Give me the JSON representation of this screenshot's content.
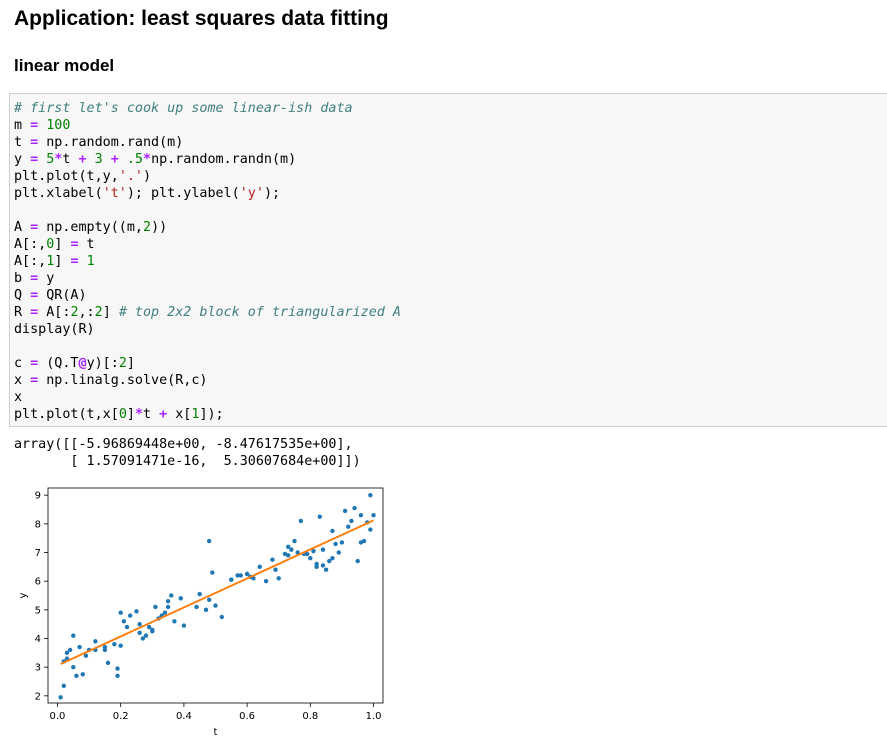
{
  "page": {
    "heading": "Application: least squares data fitting",
    "subheading": "linear model"
  },
  "code_cell": {
    "lines": [
      [
        {
          "t": "# first let's cook up some linear-ish data",
          "k": "comment"
        }
      ],
      [
        {
          "t": "m "
        },
        {
          "t": "=",
          "k": "op"
        },
        {
          "t": " "
        },
        {
          "t": "100",
          "k": "num"
        }
      ],
      [
        {
          "t": "t "
        },
        {
          "t": "=",
          "k": "op"
        },
        {
          "t": " np.random.rand(m)"
        }
      ],
      [
        {
          "t": "y "
        },
        {
          "t": "=",
          "k": "op"
        },
        {
          "t": " "
        },
        {
          "t": "5",
          "k": "num"
        },
        {
          "t": "*",
          "k": "op"
        },
        {
          "t": "t "
        },
        {
          "t": "+",
          "k": "op"
        },
        {
          "t": " "
        },
        {
          "t": "3",
          "k": "num"
        },
        {
          "t": " "
        },
        {
          "t": "+",
          "k": "op"
        },
        {
          "t": " "
        },
        {
          "t": ".5",
          "k": "num"
        },
        {
          "t": "*",
          "k": "op"
        },
        {
          "t": "np.random.randn(m)"
        }
      ],
      [
        {
          "t": "plt.plot(t,y,"
        },
        {
          "t": "'.'",
          "k": "str"
        },
        {
          "t": ")"
        }
      ],
      [
        {
          "t": "plt.xlabel("
        },
        {
          "t": "'t'",
          "k": "str"
        },
        {
          "t": "); plt.ylabel("
        },
        {
          "t": "'y'",
          "k": "str"
        },
        {
          "t": ");"
        }
      ],
      [
        {
          "t": ""
        }
      ],
      [
        {
          "t": "A "
        },
        {
          "t": "=",
          "k": "op"
        },
        {
          "t": " np.empty((m,"
        },
        {
          "t": "2",
          "k": "num"
        },
        {
          "t": "))"
        }
      ],
      [
        {
          "t": "A[:,"
        },
        {
          "t": "0",
          "k": "num"
        },
        {
          "t": "] "
        },
        {
          "t": "=",
          "k": "op"
        },
        {
          "t": " t"
        }
      ],
      [
        {
          "t": "A[:,"
        },
        {
          "t": "1",
          "k": "num"
        },
        {
          "t": "] "
        },
        {
          "t": "=",
          "k": "op"
        },
        {
          "t": " "
        },
        {
          "t": "1",
          "k": "num"
        }
      ],
      [
        {
          "t": "b "
        },
        {
          "t": "=",
          "k": "op"
        },
        {
          "t": " y"
        }
      ],
      [
        {
          "t": "Q "
        },
        {
          "t": "=",
          "k": "op"
        },
        {
          "t": " QR(A)"
        }
      ],
      [
        {
          "t": "R "
        },
        {
          "t": "=",
          "k": "op"
        },
        {
          "t": " A[:"
        },
        {
          "t": "2",
          "k": "num"
        },
        {
          "t": ",:"
        },
        {
          "t": "2",
          "k": "num"
        },
        {
          "t": "] "
        },
        {
          "t": "# top 2x2 block of triangularized A",
          "k": "comment"
        }
      ],
      [
        {
          "t": "display(R)"
        }
      ],
      [
        {
          "t": ""
        }
      ],
      [
        {
          "t": "c "
        },
        {
          "t": "=",
          "k": "op"
        },
        {
          "t": " (Q.T"
        },
        {
          "t": "@",
          "k": "op"
        },
        {
          "t": "y)[:"
        },
        {
          "t": "2",
          "k": "num"
        },
        {
          "t": "]"
        }
      ],
      [
        {
          "t": "x "
        },
        {
          "t": "=",
          "k": "op"
        },
        {
          "t": " np.linalg.solve(R,c)"
        }
      ],
      [
        {
          "t": "x"
        }
      ],
      [
        {
          "t": "plt.plot(t,x["
        },
        {
          "t": "0",
          "k": "num"
        },
        {
          "t": "]"
        },
        {
          "t": "*",
          "k": "op"
        },
        {
          "t": "t "
        },
        {
          "t": "+",
          "k": "op"
        },
        {
          "t": " x["
        },
        {
          "t": "1",
          "k": "num"
        },
        {
          "t": "]);"
        }
      ]
    ]
  },
  "output": {
    "line1": "array([[-5.96869448e+00, -8.47617535e+00],",
    "line2": "       [ 1.57091471e-16,  5.30607684e+00]])"
  },
  "colors": {
    "scatter": "#1f77b4",
    "fit_line": "#ff7f0e"
  },
  "chart_data": {
    "type": "scatter",
    "title": "",
    "xlabel": "t",
    "ylabel": "y",
    "xlim": [
      -0.03,
      1.03
    ],
    "ylim": [
      1.75,
      9.25
    ],
    "xticks": [
      "0.0",
      "0.2",
      "0.4",
      "0.6",
      "0.8",
      "1.0"
    ],
    "yticks": [
      "2",
      "3",
      "4",
      "5",
      "6",
      "7",
      "8",
      "9"
    ],
    "grid": false,
    "legend": "none",
    "series": [
      {
        "kind": "points",
        "x": [
          0.01,
          0.02,
          0.02,
          0.03,
          0.04,
          0.05,
          0.05,
          0.06,
          0.07,
          0.08,
          0.09,
          0.1,
          0.12,
          0.15,
          0.16,
          0.18,
          0.19,
          0.19,
          0.2,
          0.2,
          0.21,
          0.22,
          0.23,
          0.25,
          0.26,
          0.27,
          0.28,
          0.29,
          0.3,
          0.31,
          0.32,
          0.33,
          0.34,
          0.35,
          0.36,
          0.37,
          0.39,
          0.4,
          0.44,
          0.45,
          0.47,
          0.48,
          0.49,
          0.5,
          0.52,
          0.55,
          0.58,
          0.6,
          0.61,
          0.62,
          0.64,
          0.66,
          0.68,
          0.7,
          0.72,
          0.73,
          0.73,
          0.74,
          0.75,
          0.76,
          0.77,
          0.79,
          0.8,
          0.81,
          0.82,
          0.82,
          0.83,
          0.84,
          0.84,
          0.85,
          0.86,
          0.87,
          0.88,
          0.89,
          0.9,
          0.91,
          0.92,
          0.93,
          0.94,
          0.95,
          0.96,
          0.96,
          0.97,
          0.98,
          0.99,
          0.99,
          1.0,
          0.57,
          0.6,
          0.15,
          0.48,
          0.35,
          0.03,
          0.12,
          0.26,
          0.3,
          0.55,
          0.69,
          0.78,
          0.87
        ],
        "y": [
          1.95,
          3.2,
          2.35,
          3.5,
          3.6,
          4.1,
          3.0,
          2.7,
          3.7,
          2.75,
          3.4,
          3.6,
          3.9,
          3.6,
          3.15,
          3.8,
          2.95,
          2.7,
          4.9,
          3.75,
          4.6,
          4.4,
          4.8,
          4.95,
          4.2,
          4.0,
          4.1,
          4.4,
          4.3,
          5.1,
          4.7,
          4.8,
          4.9,
          5.1,
          5.5,
          4.6,
          5.4,
          4.45,
          5.1,
          5.55,
          5.0,
          7.4,
          6.3,
          5.15,
          4.75,
          6.05,
          6.2,
          6.25,
          6.15,
          6.1,
          6.5,
          6.0,
          6.75,
          6.1,
          6.95,
          7.2,
          6.9,
          7.1,
          7.4,
          7.0,
          8.1,
          6.95,
          6.8,
          7.05,
          6.6,
          6.5,
          8.25,
          7.1,
          6.55,
          6.4,
          6.7,
          6.8,
          7.3,
          7.0,
          7.35,
          8.45,
          7.9,
          8.1,
          8.55,
          6.7,
          8.3,
          7.35,
          7.4,
          8.05,
          9.0,
          7.8,
          8.3,
          6.2,
          6.25,
          3.7,
          5.35,
          5.3,
          3.3,
          3.6,
          4.5,
          4.25,
          6.05,
          6.4,
          6.95,
          7.75
        ]
      },
      {
        "kind": "line",
        "x": [
          0.01,
          1.0
        ],
        "y": [
          3.11,
          8.12
        ]
      }
    ]
  }
}
